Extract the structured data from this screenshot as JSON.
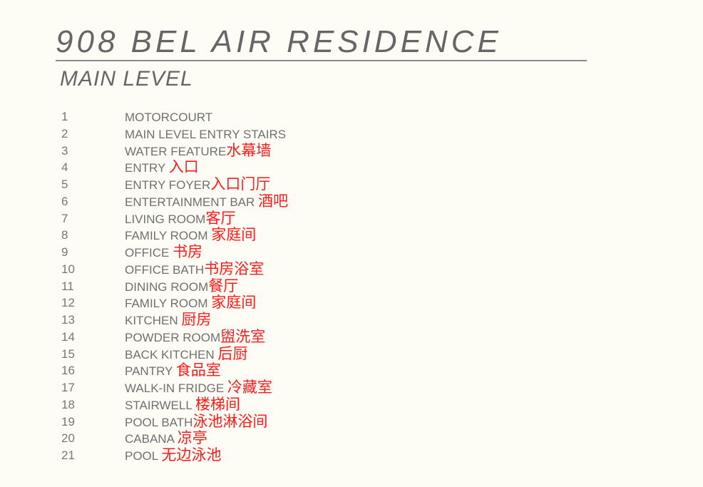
{
  "title": "908 BEL AIR RESIDENCE",
  "subtitle": "MAIN LEVEL",
  "colors": {
    "text": "#6b6b6b",
    "annotation": "#ff1a1a",
    "background": "#fdfdf6"
  },
  "rooms": [
    {
      "num": "1",
      "en": "MOTORCOURT",
      "zh": ""
    },
    {
      "num": "2",
      "en": "MAIN LEVEL ENTRY STAIRS",
      "zh": ""
    },
    {
      "num": "3",
      "en": "WATER FEATURE",
      "zh": "水幕墙"
    },
    {
      "num": "4",
      "en": "ENTRY ",
      "zh": "入口"
    },
    {
      "num": "5",
      "en": "ENTRY FOYER",
      "zh": "入口门厅"
    },
    {
      "num": "6",
      "en": "ENTERTAINMENT BAR ",
      "zh": "酒吧"
    },
    {
      "num": "7",
      "en": "LIVING ROOM",
      "zh": "客厅"
    },
    {
      "num": "8",
      "en": "FAMILY ROOM ",
      "zh": "家庭间"
    },
    {
      "num": "9",
      "en": "OFFICE ",
      "zh": "书房"
    },
    {
      "num": "10",
      "en": "OFFICE BATH",
      "zh": "书房浴室"
    },
    {
      "num": "11",
      "en": "DINING ROOM",
      "zh": "餐厅"
    },
    {
      "num": "12",
      "en": "FAMILY ROOM ",
      "zh": "家庭间"
    },
    {
      "num": "13",
      "en": "KITCHEN ",
      "zh": "厨房"
    },
    {
      "num": "14",
      "en": "POWDER ROOM",
      "zh": "盥洗室"
    },
    {
      "num": "15",
      "en": "BACK KITCHEN ",
      "zh": "后厨"
    },
    {
      "num": "16",
      "en": "PANTRY ",
      "zh": "食品室"
    },
    {
      "num": "17",
      "en": "WALK-IN FRIDGE ",
      "zh": "冷藏室"
    },
    {
      "num": "18",
      "en": "STAIRWELL ",
      "zh": "楼梯间"
    },
    {
      "num": "19",
      "en": "POOL BATH",
      "zh": "泳池淋浴间"
    },
    {
      "num": "20",
      "en": "CABANA ",
      "zh": "凉亭"
    },
    {
      "num": "21",
      "en": "POOL ",
      "zh": "无边泳池"
    }
  ]
}
